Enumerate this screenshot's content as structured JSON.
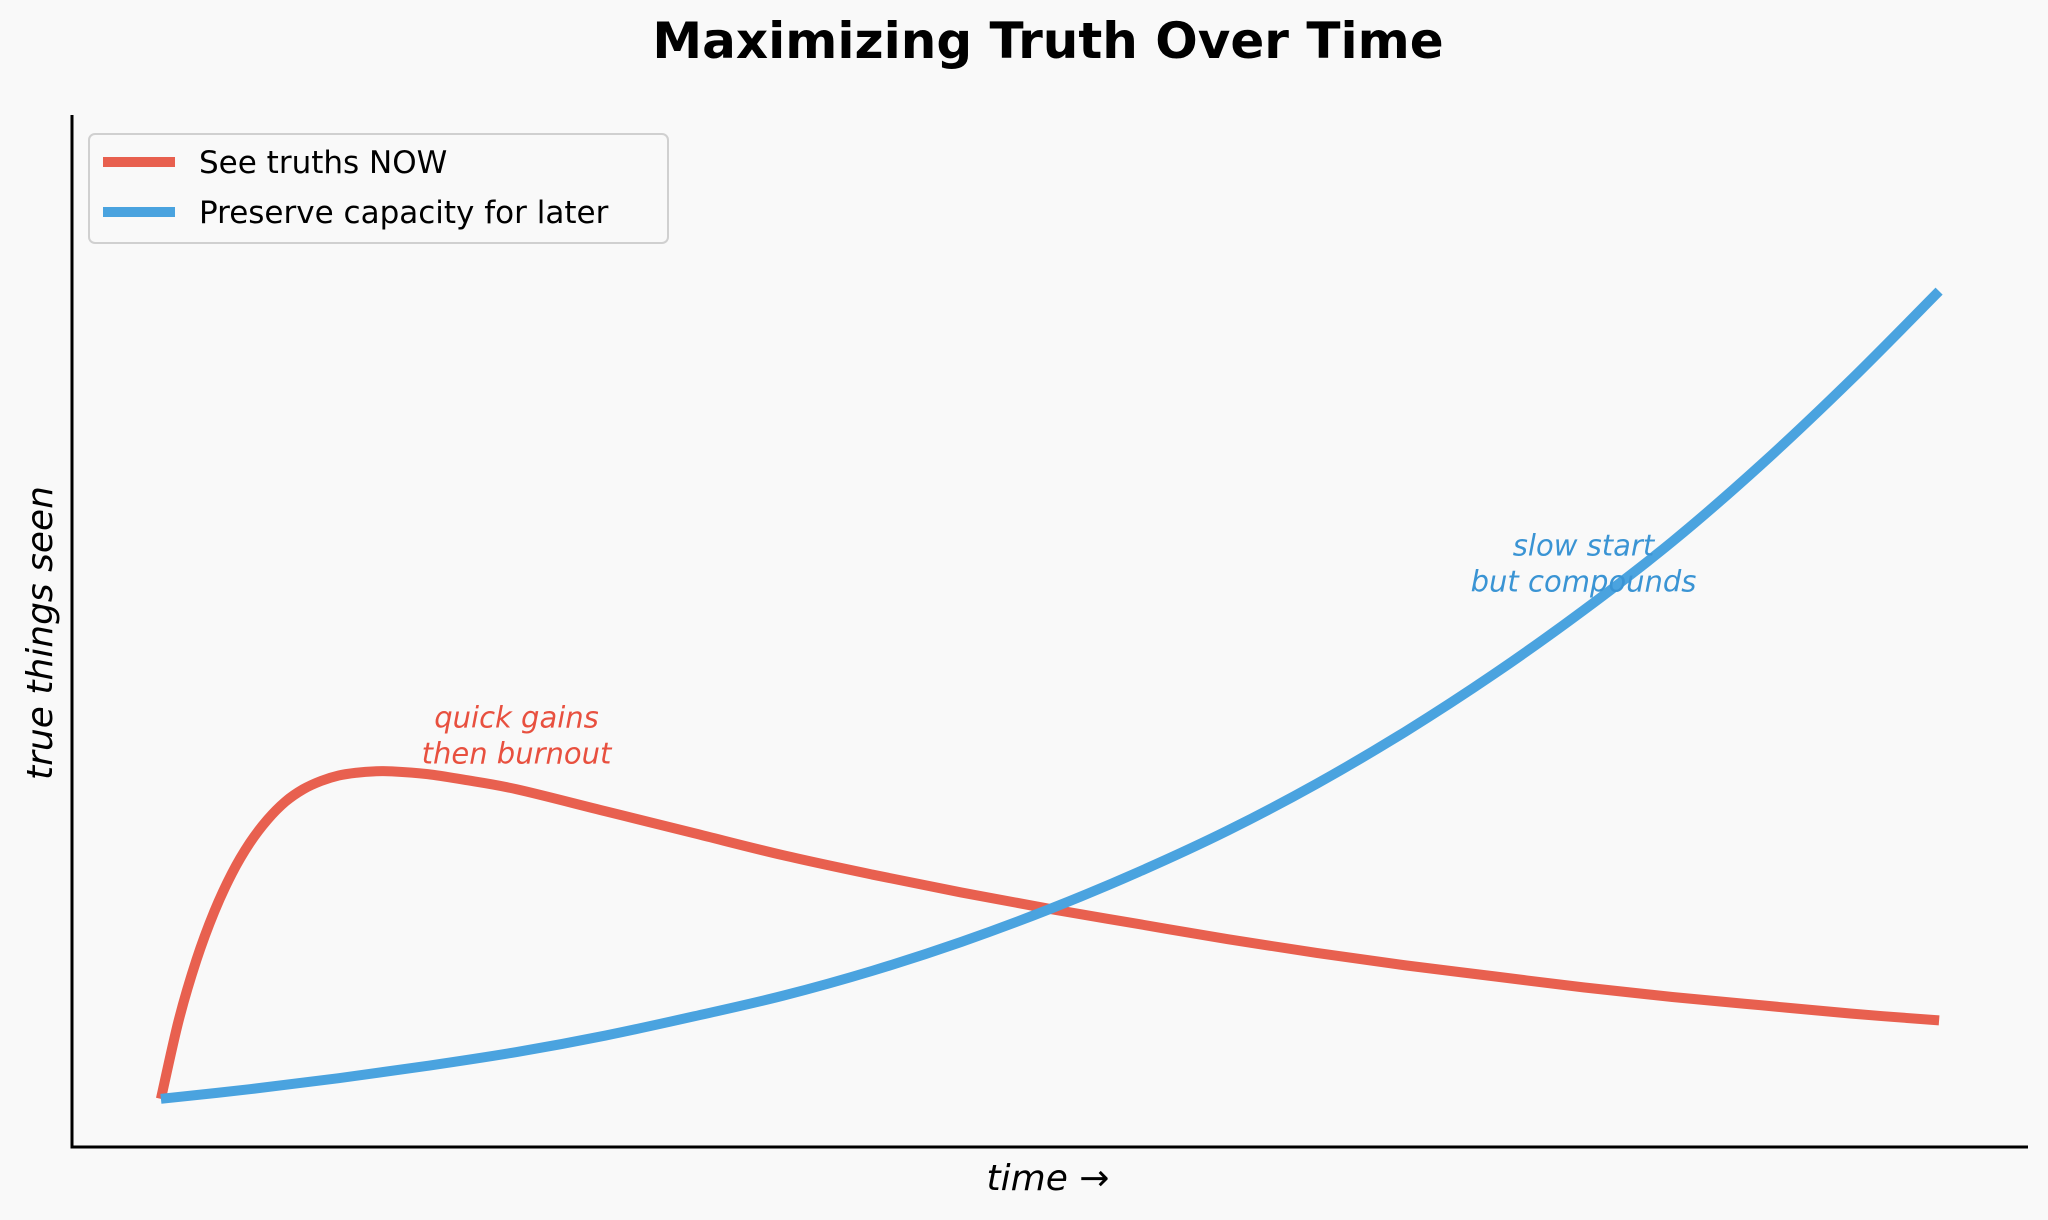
{
  "chart_data": {
    "type": "line",
    "title": "Maximizing Truth Over Time",
    "xlabel": "time →",
    "ylabel": "true things seen",
    "xlim": [
      -0.5,
      10.5
    ],
    "ylim": [
      -0.3,
      7.2
    ],
    "grid": false,
    "legend_position": "top-left",
    "series": [
      {
        "name": "See truths NOW",
        "color": "#e8604f",
        "x": [
          0,
          0.1,
          0.2,
          0.3,
          0.4,
          0.5,
          0.6,
          0.7,
          0.8,
          0.9,
          1.0,
          1.1,
          1.2,
          1.3,
          1.5,
          1.7,
          2.0,
          2.5,
          3.0,
          3.5,
          4.0,
          4.5,
          5.0,
          5.5,
          6.0,
          6.5,
          7.0,
          7.5,
          8.0,
          8.5,
          9.0,
          9.5,
          10.0
        ],
        "values": [
          0.05,
          0.62,
          1.06,
          1.41,
          1.69,
          1.91,
          2.08,
          2.21,
          2.3,
          2.36,
          2.4,
          2.42,
          2.43,
          2.43,
          2.41,
          2.37,
          2.3,
          2.14,
          1.98,
          1.82,
          1.68,
          1.55,
          1.43,
          1.32,
          1.21,
          1.11,
          1.02,
          0.94,
          0.86,
          0.79,
          0.73,
          0.67,
          0.62
        ]
      },
      {
        "name": "Preserve capacity for later",
        "color": "#4aa3df",
        "x": [
          0,
          0.5,
          1.0,
          1.5,
          2.0,
          2.5,
          3.0,
          3.5,
          4.0,
          4.5,
          5.0,
          5.5,
          6.0,
          6.5,
          7.0,
          7.5,
          8.0,
          8.5,
          9.0,
          9.5,
          10.0
        ],
        "values": [
          0.05,
          0.12,
          0.2,
          0.29,
          0.39,
          0.51,
          0.65,
          0.8,
          0.98,
          1.19,
          1.43,
          1.7,
          2.0,
          2.34,
          2.72,
          3.14,
          3.6,
          4.1,
          4.66,
          5.27,
          5.92
        ]
      }
    ],
    "annotations": [
      {
        "lines": [
          "quick gains",
          "then burnout"
        ],
        "x": 2.0,
        "y": 2.75,
        "color": "#e8503f"
      },
      {
        "lines": [
          "slow start",
          "but compounds"
        ],
        "x": 8.0,
        "y": 4.0,
        "color": "#3a94d4"
      }
    ]
  }
}
